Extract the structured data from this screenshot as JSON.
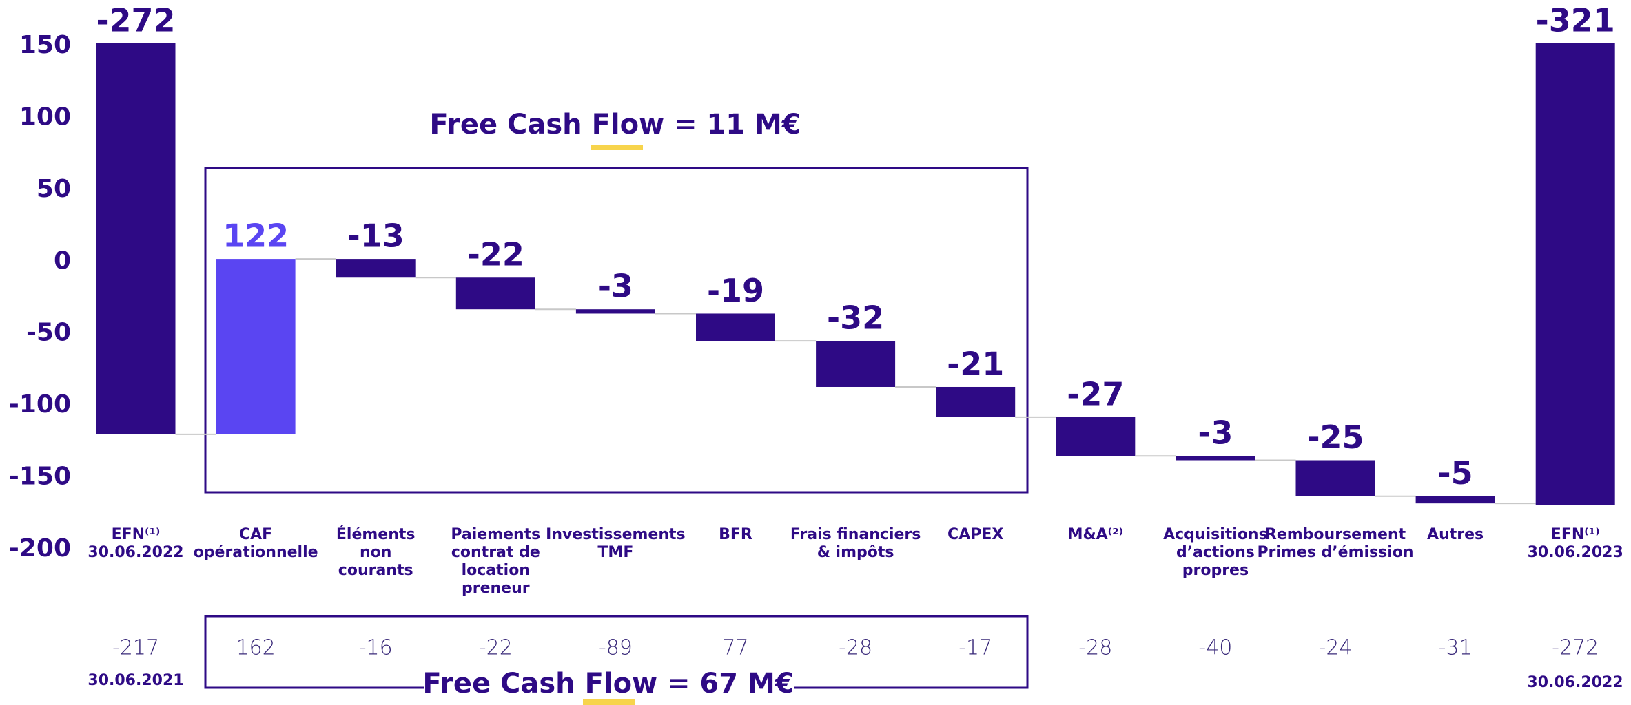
{
  "chart_data": {
    "type": "waterfall",
    "categories": [
      [
        "EFN⁽¹⁾",
        "30.06.2022"
      ],
      [
        "CAF",
        "opérationnelle"
      ],
      [
        "Éléments",
        "non",
        "courants"
      ],
      [
        "Paiements",
        "contrat de",
        "location",
        "preneur"
      ],
      [
        "Investissements",
        "TMF"
      ],
      [
        "BFR"
      ],
      [
        "Frais financiers",
        "& impôts"
      ],
      [
        "CAPEX"
      ],
      [
        "M&A⁽²⁾"
      ],
      [
        "Acquisitions",
        "d’actions",
        "propres"
      ],
      [
        "Remboursement",
        "Primes d’émission"
      ],
      [
        "Autres"
      ],
      [
        "EFN⁽¹⁾",
        "30.06.2023"
      ]
    ],
    "values": [
      -272,
      122,
      -13,
      -22,
      -3,
      -19,
      -32,
      -21,
      -27,
      -3,
      -25,
      -5,
      -321
    ],
    "measures": [
      "total",
      "relative",
      "relative",
      "relative",
      "relative",
      "relative",
      "relative",
      "relative",
      "relative",
      "relative",
      "relative",
      "relative",
      "total"
    ],
    "colors": [
      "#2e0a85",
      "#5a45f2",
      "#2e0a85",
      "#2e0a85",
      "#2e0a85",
      "#2e0a85",
      "#2e0a85",
      "#2e0a85",
      "#2e0a85",
      "#2e0a85",
      "#2e0a85",
      "#2e0a85",
      "#2e0a85"
    ],
    "ylim": [
      -200,
      152
    ],
    "yticks": [
      150,
      100,
      50,
      0,
      -50,
      -100,
      -150,
      -200
    ],
    "grid": false,
    "annotations": [
      "Free Cash Flow  = 11 M€",
      "Free Cash Flow  = 67 M€"
    ],
    "comparison": {
      "values": [
        -217,
        162,
        -16,
        -22,
        -89,
        77,
        -28,
        -17,
        -28,
        -40,
        -24,
        -31,
        -272
      ],
      "start_date": "30.06.2021",
      "end_date": "30.06.2022"
    }
  }
}
